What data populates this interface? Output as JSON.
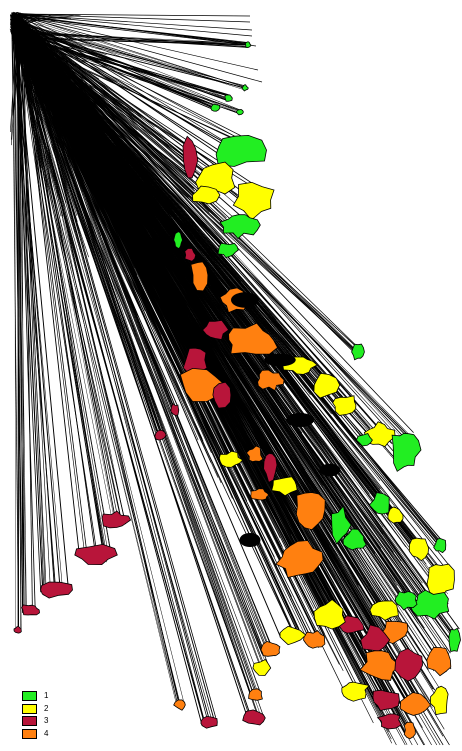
{
  "map": {
    "colors": {
      "1": "#22ee22",
      "2": "#ffff00",
      "3": "#b8153a",
      "4": "#ff8010",
      "line": "#000000",
      "background": "#ffffff"
    }
  },
  "legend": {
    "items": [
      {
        "label": "1",
        "color": "#22ee22"
      },
      {
        "label": "2",
        "color": "#ffff00"
      },
      {
        "label": "3",
        "color": "#b8153a"
      },
      {
        "label": "4",
        "color": "#ff8010"
      }
    ]
  }
}
